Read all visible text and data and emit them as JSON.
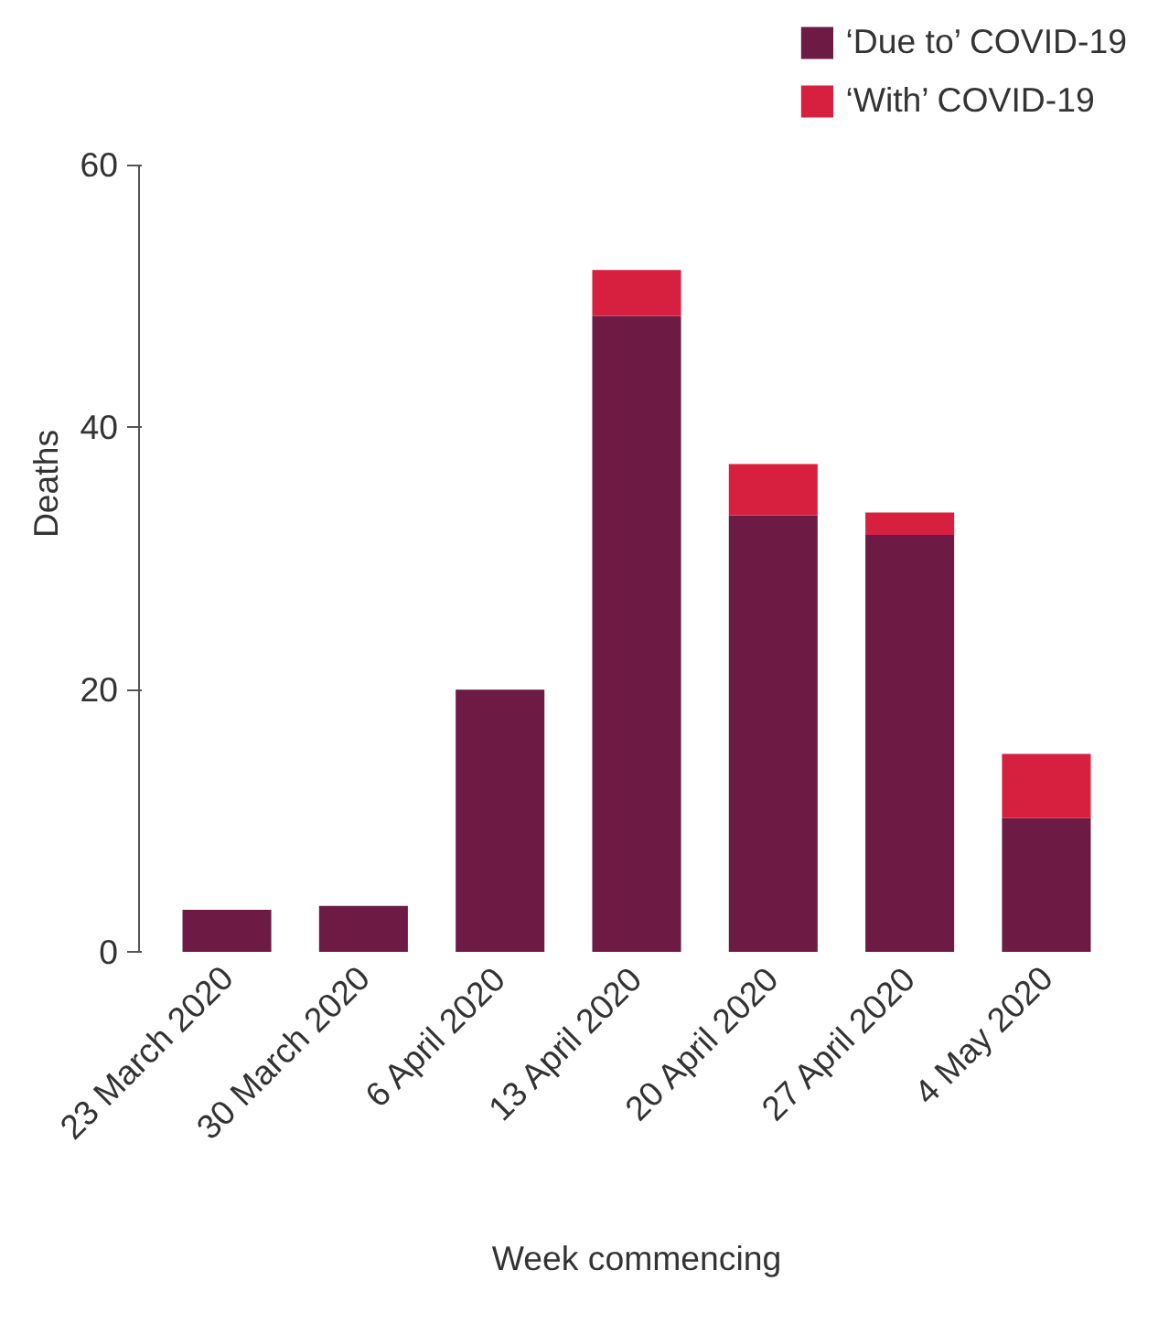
{
  "chart_data": {
    "type": "bar",
    "stacked": true,
    "xlabel": "Week commencing",
    "ylabel": "Deaths",
    "categories": [
      "23 March 2020",
      "30 March 2020",
      "6 April 2020",
      "13 April 2020",
      "20 April 2020",
      "27 April 2020",
      "4 May 2020"
    ],
    "series": [
      {
        "name": "‘Due to’ COVID-19",
        "color": "#6d1a45",
        "values": [
          3.2,
          3.5,
          20,
          48.5,
          33.3,
          31.8,
          10.2
        ]
      },
      {
        "name": "‘With’ COVID-19",
        "color": "#d7203f",
        "values": [
          0,
          0,
          0,
          3.5,
          3.9,
          1.7,
          4.9
        ]
      }
    ],
    "ylim": [
      0,
      60
    ],
    "yticks": [
      0,
      20,
      40,
      60
    ],
    "grid": false,
    "legend": "top right"
  }
}
